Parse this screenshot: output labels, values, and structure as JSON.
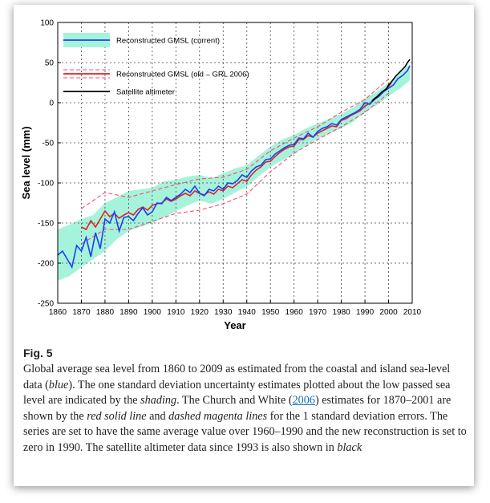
{
  "figure": {
    "label": "Fig. 5",
    "caption": {
      "p1": "Global average sea level from 1860 to 2009 as estimated from the coastal and island sea-level data (",
      "p1_em": "blue",
      "p2": "). The one standard deviation uncertainty estimates plotted about the low passed sea level are indicated by the ",
      "p2_em": "shading",
      "p3": ". The Church and White (",
      "p3_link": "2006",
      "p4": ") estimates for 1870–2001 are shown by the ",
      "p4_em": "red solid line",
      "p5": " and ",
      "p5_em": "dashed magenta lines",
      "p6": " for the 1 standard deviation errors. The series are set to have the same average value over 1960–1990 and the new reconstruction is set to zero in 1990. The satellite altimeter data since 1993 is also shown in ",
      "p6_em": "black"
    }
  },
  "chart_data": {
    "type": "line",
    "title": "",
    "xlabel": "Year",
    "ylabel": "Sea level (mm)",
    "xlim": [
      1860,
      2010
    ],
    "ylim": [
      -250,
      100
    ],
    "xticks": [
      1860,
      1870,
      1880,
      1890,
      1900,
      1910,
      1920,
      1930,
      1940,
      1950,
      1960,
      1970,
      1980,
      1990,
      2000,
      2010
    ],
    "yticks": [
      100,
      50,
      0,
      -50,
      -100,
      -150,
      -200,
      -250
    ],
    "grid": true,
    "legend_position": "top-left",
    "legend": [
      "Reconstructed GMSL (current)",
      "Reconstructed GMSL (old – GRL 2006)",
      "Satellite altimeter"
    ],
    "colors": {
      "current": "#1f3ff0",
      "shading": "#a6f3dc",
      "old": "#e0202a",
      "old_dashed": "#ff4b6a",
      "satellite": "#000000"
    },
    "series": [
      {
        "name": "Reconstructed GMSL (current)",
        "x": [
          1860,
          1862,
          1864,
          1866,
          1868,
          1870,
          1872,
          1874,
          1876,
          1878,
          1880,
          1882,
          1884,
          1886,
          1888,
          1890,
          1892,
          1894,
          1896,
          1898,
          1900,
          1902,
          1904,
          1906,
          1908,
          1910,
          1912,
          1914,
          1916,
          1918,
          1920,
          1922,
          1924,
          1926,
          1928,
          1930,
          1932,
          1934,
          1936,
          1938,
          1940,
          1942,
          1944,
          1946,
          1948,
          1950,
          1952,
          1954,
          1956,
          1958,
          1960,
          1962,
          1964,
          1966,
          1968,
          1970,
          1972,
          1974,
          1976,
          1978,
          1980,
          1982,
          1984,
          1986,
          1988,
          1990,
          1992,
          1994,
          1996,
          1998,
          2000,
          2002,
          2004,
          2006,
          2008,
          2009
        ],
        "y": [
          -190,
          -185,
          -195,
          -205,
          -178,
          -185,
          -168,
          -192,
          -162,
          -182,
          -145,
          -150,
          -136,
          -160,
          -143,
          -142,
          -147,
          -138,
          -131,
          -140,
          -136,
          -125,
          -126,
          -118,
          -122,
          -118,
          -114,
          -108,
          -112,
          -104,
          -113,
          -116,
          -108,
          -110,
          -104,
          -108,
          -100,
          -101,
          -97,
          -90,
          -93,
          -85,
          -80,
          -78,
          -71,
          -70,
          -64,
          -60,
          -56,
          -53,
          -52,
          -44,
          -45,
          -38,
          -43,
          -36,
          -32,
          -30,
          -26,
          -28,
          -21,
          -18,
          -15,
          -12,
          -8,
          0,
          -2,
          4,
          8,
          14,
          18,
          22,
          30,
          34,
          40,
          46
        ]
      },
      {
        "name": "Reconstructed GMSL (old – GRL 2006)",
        "x": [
          1870,
          1872,
          1874,
          1876,
          1878,
          1880,
          1882,
          1884,
          1886,
          1888,
          1890,
          1892,
          1894,
          1896,
          1898,
          1900,
          1902,
          1904,
          1906,
          1908,
          1910,
          1912,
          1914,
          1916,
          1918,
          1920,
          1922,
          1924,
          1926,
          1928,
          1930,
          1932,
          1934,
          1936,
          1938,
          1940,
          1942,
          1944,
          1946,
          1948,
          1950,
          1952,
          1954,
          1956,
          1958,
          1960,
          1962,
          1964,
          1966,
          1968,
          1970,
          1972,
          1974,
          1976,
          1978,
          1980,
          1982,
          1984,
          1986,
          1988,
          1990,
          1992,
          1994,
          1996,
          1998,
          2000,
          2001
        ],
        "y": [
          -155,
          -158,
          -147,
          -155,
          -145,
          -135,
          -142,
          -138,
          -144,
          -140,
          -137,
          -140,
          -133,
          -130,
          -134,
          -128,
          -126,
          -125,
          -120,
          -123,
          -120,
          -116,
          -113,
          -116,
          -110,
          -113,
          -115,
          -111,
          -114,
          -108,
          -110,
          -104,
          -106,
          -101,
          -96,
          -98,
          -90,
          -84,
          -80,
          -74,
          -73,
          -67,
          -62,
          -58,
          -55,
          -54,
          -46,
          -46,
          -41,
          -43,
          -38,
          -35,
          -32,
          -29,
          -30,
          -22,
          -20,
          -16,
          -13,
          -10,
          -4,
          -1,
          5,
          10,
          15,
          20,
          24
        ]
      },
      {
        "name": "Satellite altimeter",
        "x": [
          1993,
          1994,
          1995,
          1996,
          1997,
          1998,
          1999,
          2000,
          2001,
          2002,
          2003,
          2004,
          2005,
          2006,
          2007,
          2008,
          2009
        ],
        "y": [
          2,
          5,
          7,
          10,
          13,
          15,
          17,
          22,
          25,
          29,
          33,
          36,
          39,
          42,
          45,
          50,
          54
        ]
      }
    ],
    "uncertainty_band": {
      "name": "Reconstructed GMSL (current) ±1 s.d.",
      "x": [
        1860,
        1865,
        1870,
        1875,
        1880,
        1885,
        1890,
        1895,
        1900,
        1905,
        1910,
        1915,
        1920,
        1925,
        1930,
        1935,
        1940,
        1945,
        1950,
        1955,
        1960,
        1965,
        1970,
        1975,
        1980,
        1985,
        1990,
        1995,
        2000,
        2005,
        2009
      ],
      "lower": [
        -222,
        -216,
        -205,
        -195,
        -185,
        -170,
        -160,
        -155,
        -150,
        -143,
        -135,
        -128,
        -122,
        -126,
        -120,
        -112,
        -105,
        -92,
        -80,
        -72,
        -64,
        -54,
        -45,
        -38,
        -32,
        -24,
        -12,
        -3,
        8,
        18,
        28
      ],
      "upper": [
        -158,
        -152,
        -145,
        -140,
        -125,
        -118,
        -110,
        -108,
        -106,
        -98,
        -96,
        -92,
        -90,
        -94,
        -88,
        -82,
        -78,
        -66,
        -55,
        -46,
        -40,
        -32,
        -26,
        -20,
        -14,
        -6,
        5,
        14,
        25,
        38,
        48
      ]
    },
    "old_error_band": {
      "x": [
        1870,
        1880,
        1890,
        1900,
        1910,
        1920,
        1930,
        1940,
        1950,
        1960,
        1970,
        1980,
        1990,
        2001
      ],
      "lower": [
        -176,
        -158,
        -158,
        -148,
        -138,
        -134,
        -126,
        -114,
        -86,
        -63,
        -46,
        -30,
        -12,
        14
      ],
      "upper": [
        -132,
        -112,
        -118,
        -110,
        -102,
        -95,
        -93,
        -83,
        -60,
        -44,
        -30,
        -12,
        4,
        32
      ]
    }
  }
}
